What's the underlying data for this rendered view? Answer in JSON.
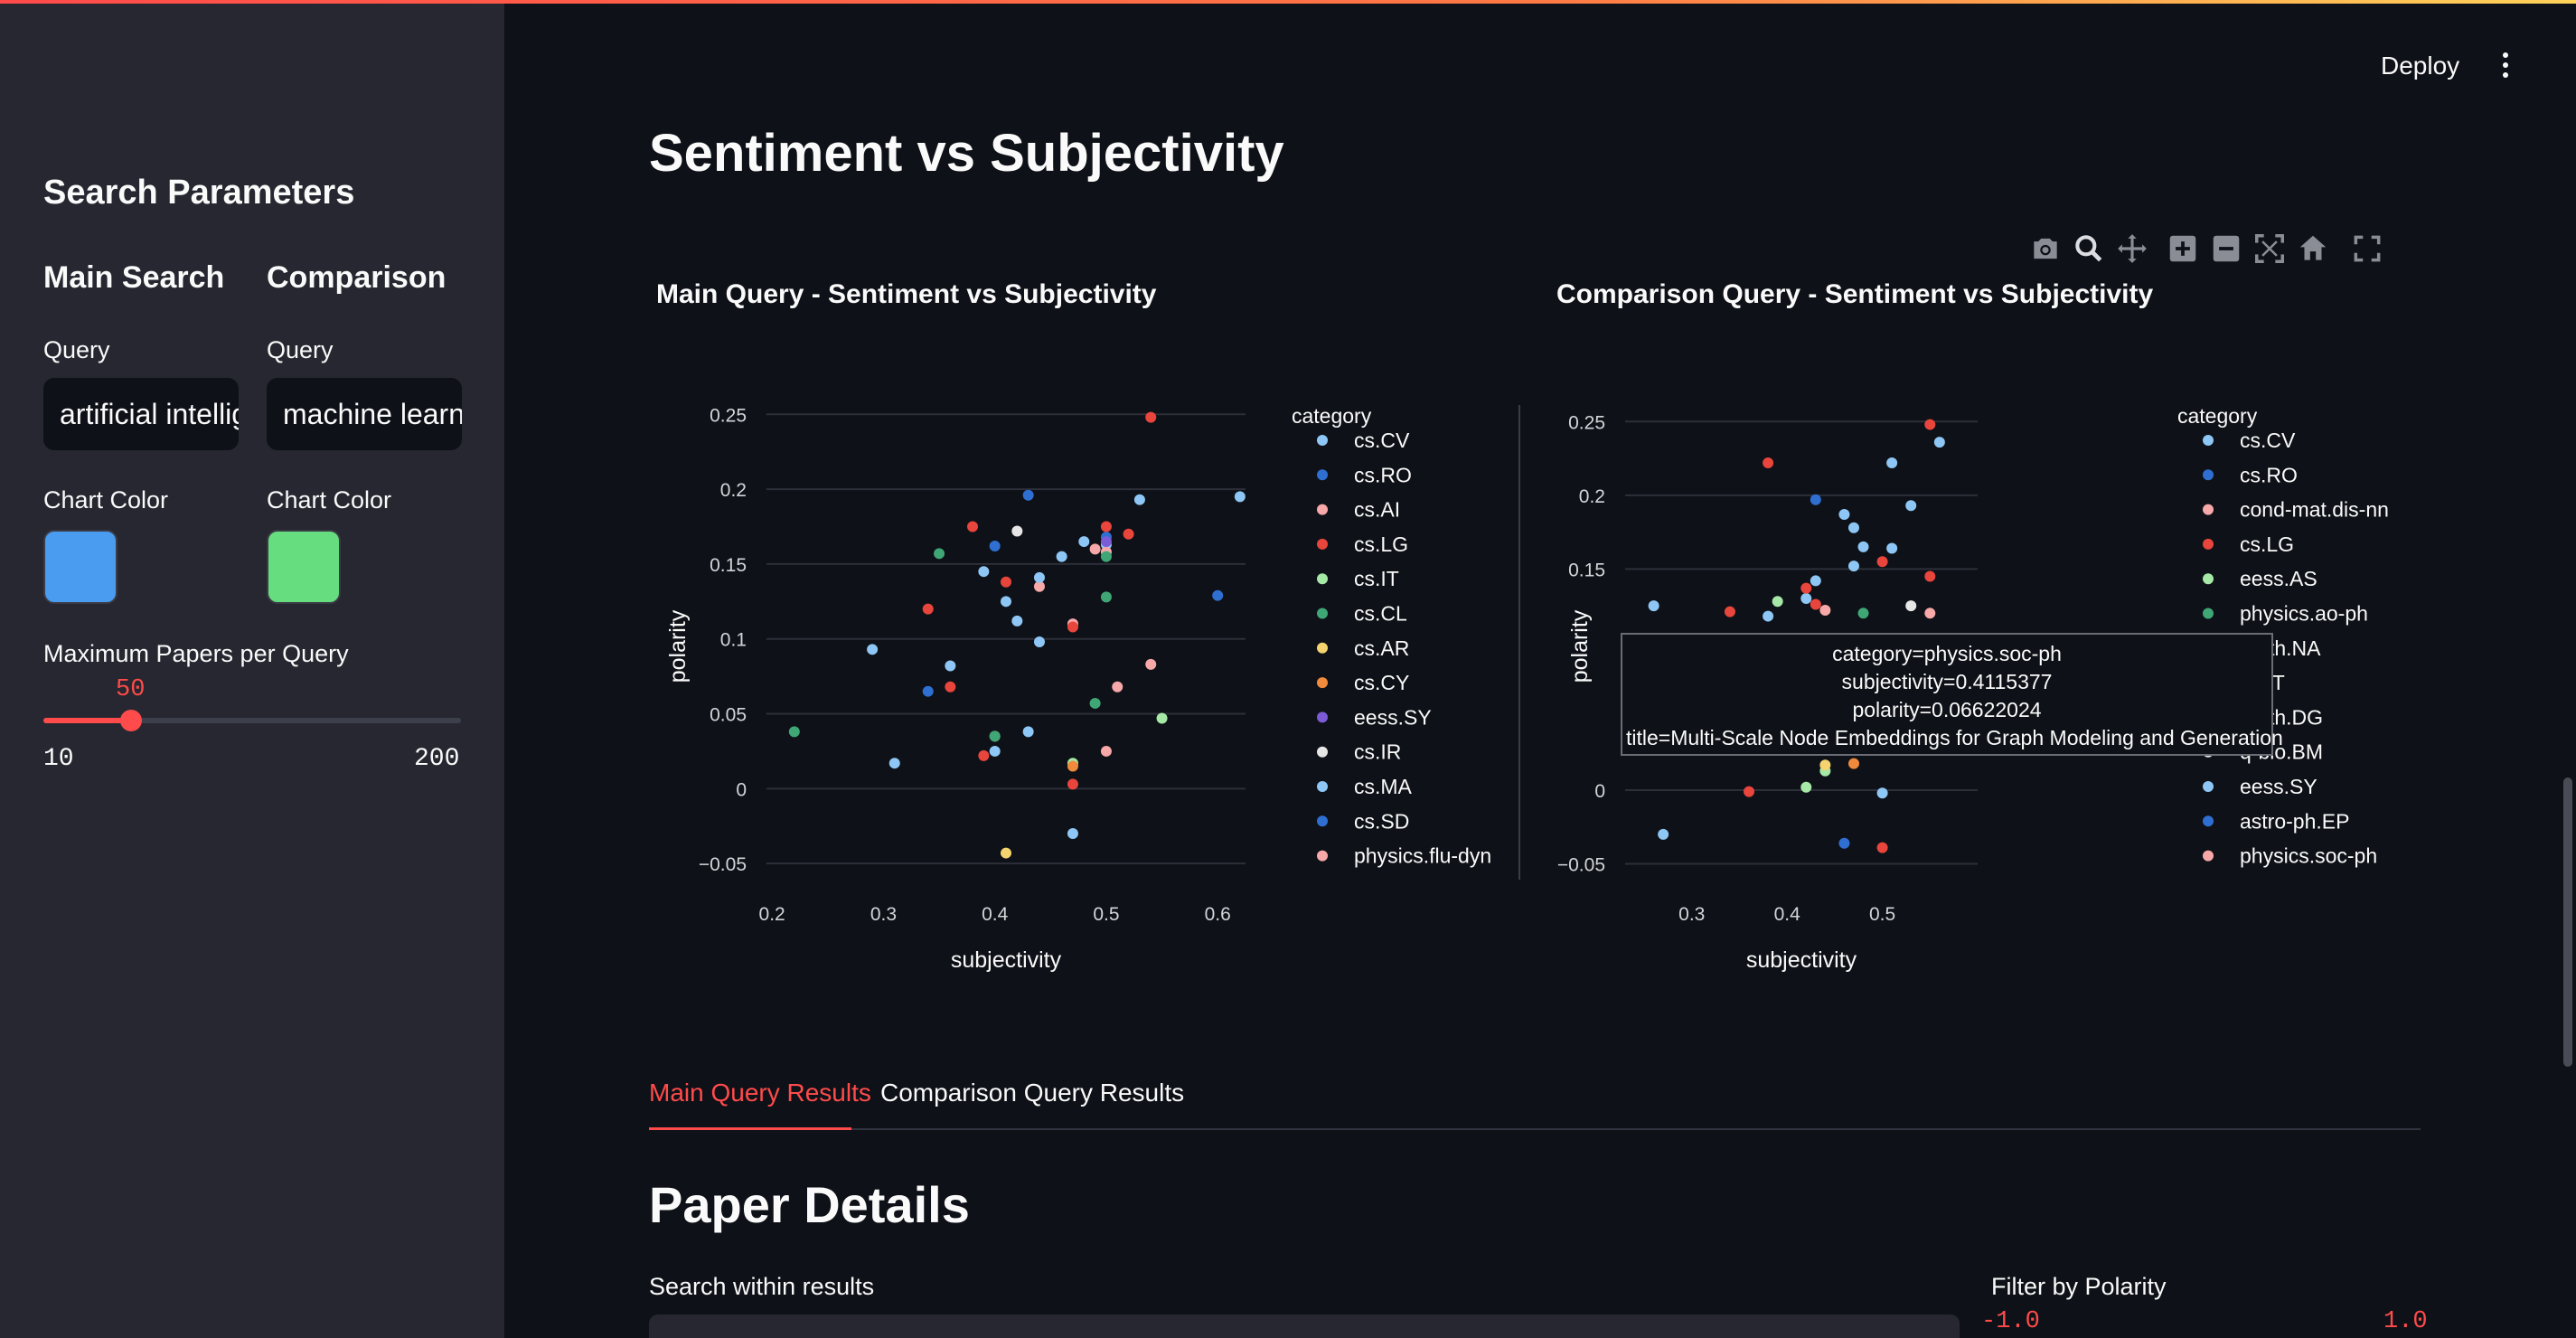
{
  "sidebar": {
    "title": "Search Parameters",
    "main": {
      "heading": "Main Search",
      "query_label": "Query",
      "query_value": "artificial intelligence",
      "color_label": "Chart Color",
      "color": "#4a9cf0"
    },
    "comparison": {
      "heading": "Comparison",
      "query_label": "Query",
      "query_value": "machine learning",
      "color_label": "Chart Color",
      "color": "#66dd7e"
    },
    "slider": {
      "label": "Maximum Papers per Query",
      "value": "50",
      "min": "10",
      "max": "200",
      "value_num": 50,
      "min_num": 10,
      "max_num": 200
    }
  },
  "header": {
    "deploy_label": "Deploy",
    "menu_icon": "kebab-menu-icon"
  },
  "page": {
    "title": "Sentiment vs Subjectivity"
  },
  "toolbar": {
    "icons": [
      "camera-icon",
      "zoom-icon",
      "pan-icon",
      "zoom-in-icon",
      "zoom-out-icon",
      "autoscale-icon",
      "reset-axes-icon",
      "fullscreen-icon"
    ]
  },
  "tabs": {
    "items": [
      "Main Query Results",
      "Comparison Query Results"
    ],
    "active": 0
  },
  "details": {
    "title": "Paper Details",
    "search_label": "Search within results",
    "filter_label": "Filter by Polarity",
    "filter_min": "-1.0",
    "filter_max": "1.0"
  },
  "tooltip": {
    "lines": [
      "category=physics.soc-ph",
      "subjectivity=0.4115377",
      "polarity=0.06622024",
      "title=Multi-Scale Node Embeddings for Graph Modeling and Generation"
    ]
  },
  "chart_data": [
    {
      "type": "scatter",
      "title": "Main Query - Sentiment vs Subjectivity",
      "xlabel": "subjectivity",
      "ylabel": "polarity",
      "xlim": [
        0.195,
        0.625
      ],
      "ylim": [
        -0.065,
        0.255
      ],
      "xticks": [
        "0.2",
        "0.3",
        "0.4",
        "0.5",
        "0.6"
      ],
      "xtick_values": [
        0.2,
        0.3,
        0.4,
        0.5,
        0.6
      ],
      "yticks": [
        "0.25",
        "0.2",
        "0.15",
        "0.1",
        "0.05",
        "0",
        "−0.05"
      ],
      "ytick_values": [
        0.25,
        0.2,
        0.15,
        0.1,
        0.05,
        0,
        -0.05
      ],
      "legend_title": "category",
      "legend_position": "right",
      "series": [
        {
          "name": "cs.CV",
          "color": "#8ec7f5",
          "points": [
            [
              0.62,
              0.195
            ],
            [
              0.48,
              0.165
            ],
            [
              0.31,
              0.017
            ],
            [
              0.43,
              0.038
            ],
            [
              0.47,
              -0.03
            ],
            [
              0.36,
              0.082
            ],
            [
              0.39,
              0.145
            ],
            [
              0.42,
              0.112
            ],
            [
              0.46,
              0.155
            ],
            [
              0.5,
              0.163
            ],
            [
              0.41,
              0.125
            ],
            [
              0.53,
              0.193
            ],
            [
              0.29,
              0.093
            ],
            [
              0.44,
              0.098
            ],
            [
              0.4,
              0.025
            ]
          ]
        },
        {
          "name": "cs.RO",
          "color": "#2f6fd1",
          "points": [
            [
              0.43,
              0.196
            ],
            [
              0.6,
              0.129
            ],
            [
              0.34,
              0.065
            ],
            [
              0.5,
              0.168
            ]
          ]
        },
        {
          "name": "cs.AI",
          "color": "#f7a8a8",
          "points": [
            [
              0.5,
              0.158
            ],
            [
              0.51,
              0.068
            ],
            [
              0.54,
              0.083
            ],
            [
              0.44,
              0.135
            ],
            [
              0.47,
              0.11
            ],
            [
              0.5,
              0.025
            ],
            [
              0.4,
              0.035
            ]
          ]
        },
        {
          "name": "cs.LG",
          "color": "#e8453c",
          "points": [
            [
              0.54,
              0.248
            ],
            [
              0.38,
              0.175
            ],
            [
              0.52,
              0.17
            ],
            [
              0.41,
              0.138
            ],
            [
              0.34,
              0.12
            ],
            [
              0.36,
              0.068
            ],
            [
              0.47,
              0.108
            ],
            [
              0.39,
              0.022
            ],
            [
              0.47,
              0.003
            ],
            [
              0.5,
              0.175
            ]
          ]
        },
        {
          "name": "cs.IT",
          "color": "#a6e8a6",
          "points": [
            [
              0.55,
              0.047
            ],
            [
              0.47,
              0.017
            ]
          ]
        },
        {
          "name": "cs.CL",
          "color": "#3fa776",
          "points": [
            [
              0.22,
              0.038
            ],
            [
              0.35,
              0.157
            ],
            [
              0.5,
              0.128
            ],
            [
              0.49,
              0.057
            ],
            [
              0.5,
              0.155
            ],
            [
              0.4,
              0.035
            ]
          ]
        },
        {
          "name": "cs.AR",
          "color": "#f5d36e",
          "points": [
            [
              0.41,
              -0.043
            ]
          ]
        },
        {
          "name": "cs.CY",
          "color": "#f08a3c",
          "points": [
            [
              0.47,
              0.015
            ]
          ]
        },
        {
          "name": "eess.SY",
          "color": "#7b5cd6",
          "points": [
            [
              0.5,
              0.165
            ]
          ]
        },
        {
          "name": "cs.IR",
          "color": "#e6e6e6",
          "points": [
            [
              0.42,
              0.172
            ]
          ]
        },
        {
          "name": "cs.MA",
          "color": "#8ec7f5",
          "points": [
            [
              0.44,
              0.141
            ]
          ]
        },
        {
          "name": "cs.SD",
          "color": "#2f6fd1",
          "points": [
            [
              0.4,
              0.162
            ]
          ]
        },
        {
          "name": "physics.flu-dyn",
          "color": "#f7a8a8",
          "points": [
            [
              0.49,
              0.16
            ]
          ]
        }
      ]
    },
    {
      "type": "scatter",
      "title": "Comparison Query - Sentiment vs Subjectivity",
      "xlabel": "subjectivity",
      "ylabel": "polarity",
      "xlim": [
        0.23,
        0.6
      ],
      "ylim": [
        -0.065,
        0.26
      ],
      "xticks": [
        "0.3",
        "0.4",
        "0.5"
      ],
      "xtick_values": [
        0.3,
        0.4,
        0.5
      ],
      "yticks": [
        "0.25",
        "0.2",
        "0.15",
        "0",
        "−0.05"
      ],
      "ytick_values": [
        0.25,
        0.2,
        0.15,
        0,
        -0.05
      ],
      "legend_title": "category",
      "legend_position": "right",
      "series": [
        {
          "name": "cs.CV",
          "color": "#8ec7f5",
          "points": [
            [
              0.56,
              0.236
            ],
            [
              0.51,
              0.222
            ],
            [
              0.53,
              0.193
            ],
            [
              0.46,
              0.187
            ],
            [
              0.47,
              0.178
            ],
            [
              0.48,
              0.165
            ],
            [
              0.51,
              0.164
            ],
            [
              0.47,
              0.152
            ],
            [
              0.43,
              0.142
            ],
            [
              0.26,
              0.125
            ],
            [
              0.5,
              -0.002
            ],
            [
              0.27,
              -0.03
            ],
            [
              0.38,
              0.118
            ],
            [
              0.42,
              0.13
            ]
          ]
        },
        {
          "name": "cs.RO",
          "color": "#2f6fd1",
          "points": [
            [
              0.43,
              0.197
            ],
            [
              0.46,
              -0.036
            ]
          ]
        },
        {
          "name": "cond-mat.dis-nn",
          "color": "#f7a8a8",
          "points": [
            [
              0.44,
              0.122
            ],
            [
              0.55,
              0.12
            ]
          ]
        },
        {
          "name": "cs.LG",
          "color": "#e8453c",
          "points": [
            [
              0.55,
              0.248
            ],
            [
              0.38,
              0.222
            ],
            [
              0.55,
              0.145
            ],
            [
              0.5,
              0.155
            ],
            [
              0.42,
              0.137
            ],
            [
              0.34,
              0.121
            ],
            [
              0.43,
              0.126
            ],
            [
              0.36,
              -0.001
            ],
            [
              0.5,
              -0.039
            ]
          ]
        },
        {
          "name": "eess.AS",
          "color": "#a6e8a6",
          "points": [
            [
              0.39,
              0.128
            ],
            [
              0.42,
              0.002
            ],
            [
              0.44,
              0.013
            ]
          ]
        },
        {
          "name": "physics.ao-ph",
          "color": "#3fa776",
          "points": [
            [
              0.48,
              0.12
            ],
            [
              0.35,
              0.028
            ]
          ]
        },
        {
          "name": "math.NA",
          "color": "#f5d36e",
          "points": [
            [
              0.44,
              0.017
            ]
          ]
        },
        {
          "name": "cs.IT",
          "color": "#f08a3c",
          "points": [
            [
              0.47,
              0.018
            ]
          ]
        },
        {
          "name": "math.DG",
          "color": "#7b5cd6",
          "points": []
        },
        {
          "name": "q-bio.BM",
          "color": "#e6e6e6",
          "points": [
            [
              0.53,
              0.125
            ]
          ]
        },
        {
          "name": "eess.SY",
          "color": "#8ec7f5",
          "points": []
        },
        {
          "name": "astro-ph.EP",
          "color": "#2f6fd1",
          "points": []
        },
        {
          "name": "physics.soc-ph",
          "color": "#f7a8a8",
          "points": [
            [
              0.4115377,
              0.06622024
            ]
          ]
        }
      ]
    }
  ]
}
